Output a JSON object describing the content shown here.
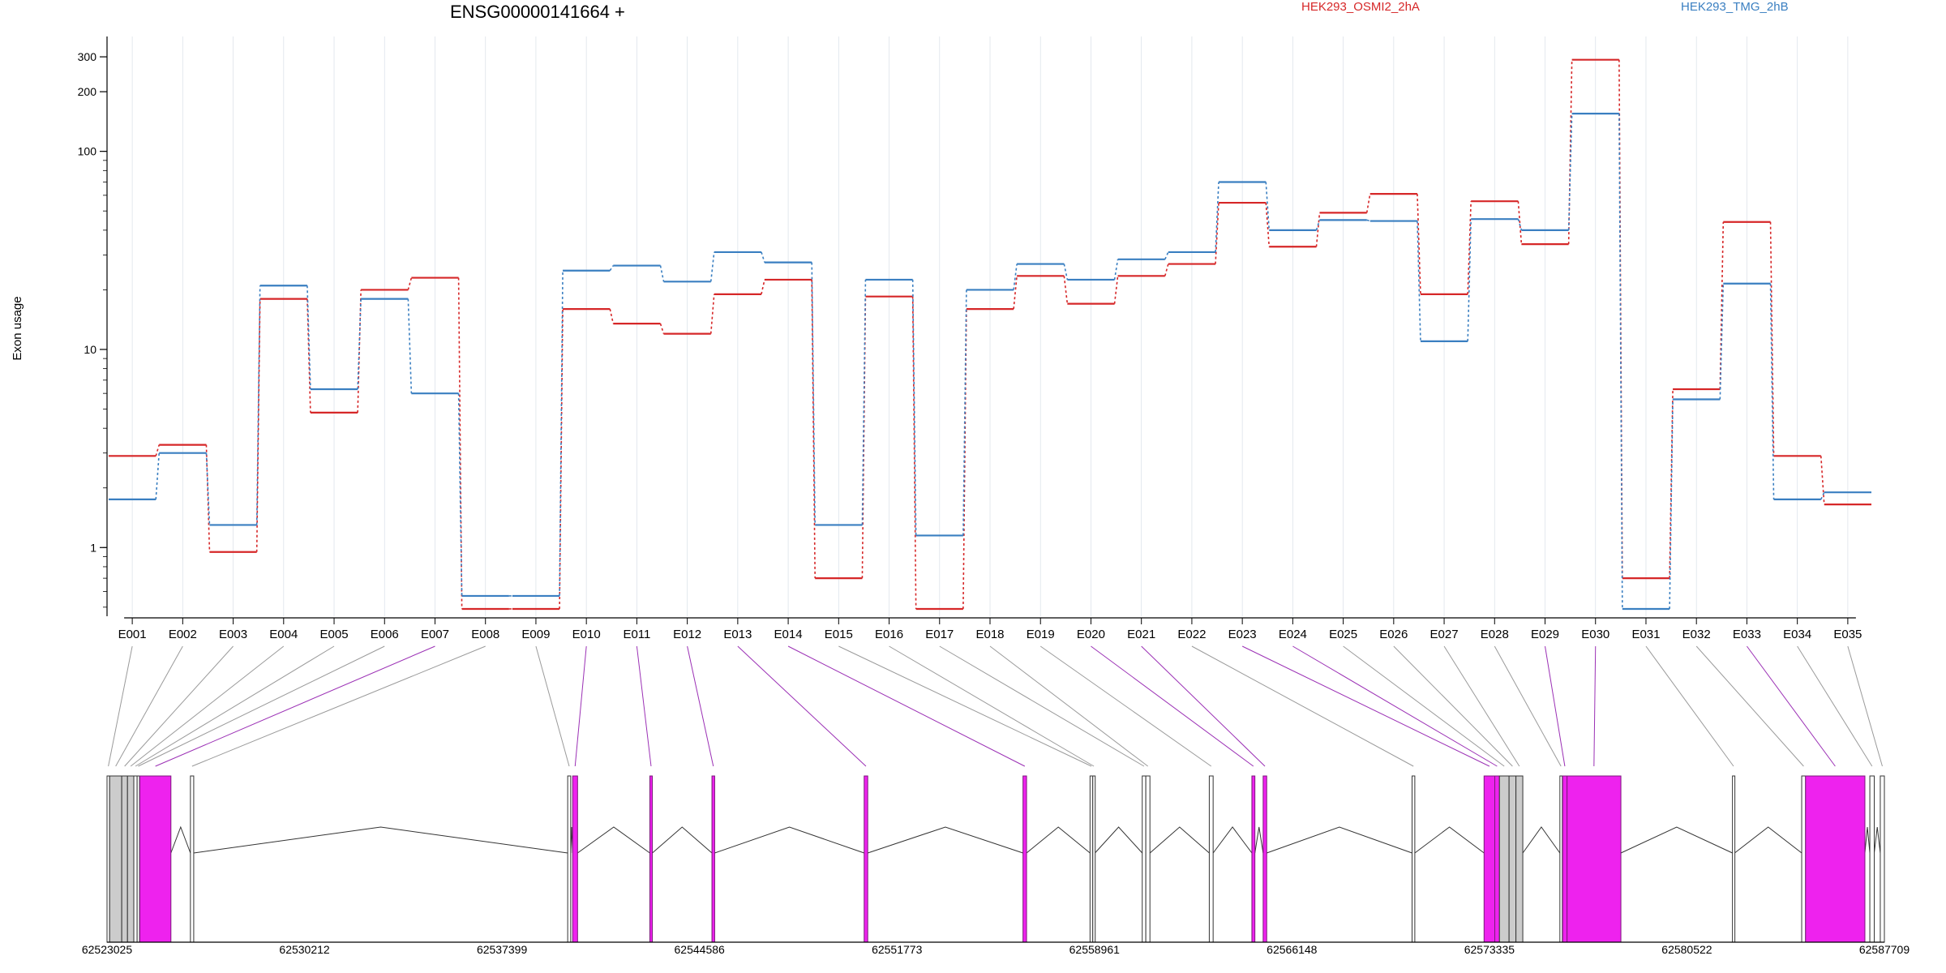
{
  "chart_data": {
    "type": "line",
    "title": "ENSG00000141664 +",
    "ylabel": "Exon usage",
    "yscale": "log",
    "ylim": [
      0.45,
      380
    ],
    "yticks": [
      1,
      10,
      100,
      200,
      300
    ],
    "categories": [
      "E001",
      "E002",
      "E003",
      "E004",
      "E005",
      "E006",
      "E007",
      "E008",
      "E009",
      "E010",
      "E011",
      "E012",
      "E013",
      "E014",
      "E015",
      "E016",
      "E017",
      "E018",
      "E019",
      "E020",
      "E021",
      "E022",
      "E023",
      "E024",
      "E025",
      "E026",
      "E027",
      "E028",
      "E029",
      "E030",
      "E031",
      "E032",
      "E033",
      "E034",
      "E035"
    ],
    "series": [
      {
        "name": "HEK293_OSMI2_2hA",
        "color": "#d62728",
        "values": [
          2.9,
          3.3,
          0.95,
          18,
          4.8,
          20,
          23,
          0.49,
          0.49,
          16,
          13.5,
          12,
          19,
          22.5,
          0.7,
          18.5,
          0.49,
          16,
          23.5,
          17,
          23.5,
          27,
          55,
          33,
          49,
          61,
          19,
          56,
          34,
          290,
          0.7,
          6.3,
          44,
          2.9,
          1.65
        ]
      },
      {
        "name": "HEK293_TMG_2hB",
        "color": "#3a7fc1",
        "values": [
          1.75,
          3.0,
          1.3,
          21,
          6.3,
          18,
          6.0,
          0.57,
          0.57,
          25,
          26.5,
          22,
          31,
          27.5,
          1.3,
          22.5,
          1.15,
          20,
          27,
          22.5,
          28.5,
          31,
          70,
          40,
          45,
          44.5,
          11,
          45.5,
          40,
          155,
          0.49,
          5.6,
          21.5,
          1.75,
          1.9
        ]
      }
    ],
    "genome_axis": {
      "labels": [
        "62523025",
        "62530212",
        "62537399",
        "62544586",
        "62551773",
        "62558961",
        "62566148",
        "62573335",
        "62580522",
        "62587709"
      ],
      "start": 62523025,
      "end": 62587709
    },
    "exon_highlight": [
      false,
      false,
      false,
      false,
      false,
      false,
      true,
      false,
      false,
      true,
      true,
      true,
      true,
      true,
      false,
      false,
      false,
      false,
      false,
      true,
      true,
      false,
      true,
      true,
      false,
      false,
      false,
      false,
      true,
      true,
      false,
      false,
      true,
      false,
      false
    ],
    "gene_model_colors": {
      "highlight": "#ee22ee",
      "normal": "#cccccc"
    }
  }
}
